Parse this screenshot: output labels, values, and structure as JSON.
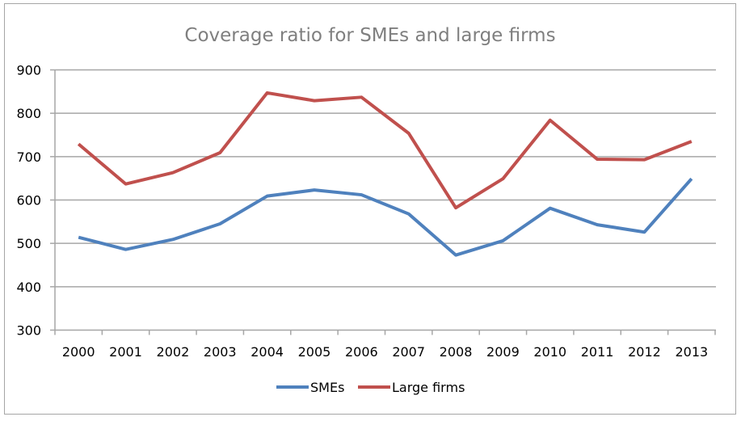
{
  "chart_data": {
    "type": "line",
    "title": "Coverage ratio for SMEs and large firms",
    "xlabel": "",
    "ylabel": "",
    "categories": [
      "2000",
      "2001",
      "2002",
      "2003",
      "2004",
      "2005",
      "2006",
      "2007",
      "2008",
      "2009",
      "2010",
      "2011",
      "2012",
      "2013"
    ],
    "ylim": [
      300,
      900
    ],
    "yticks": [
      300,
      400,
      500,
      600,
      700,
      800,
      900
    ],
    "grid": true,
    "legend_position": "bottom",
    "series": [
      {
        "name": "SMEs",
        "color": "#4f81bd",
        "values": [
          514,
          486,
          509,
          545,
          609,
          623,
          612,
          568,
          473,
          506,
          581,
          543,
          526,
          649
        ]
      },
      {
        "name": "Large firms",
        "color": "#c0504d",
        "values": [
          729,
          637,
          663,
          709,
          847,
          829,
          837,
          754,
          582,
          649,
          784,
          694,
          693,
          735
        ]
      }
    ]
  }
}
